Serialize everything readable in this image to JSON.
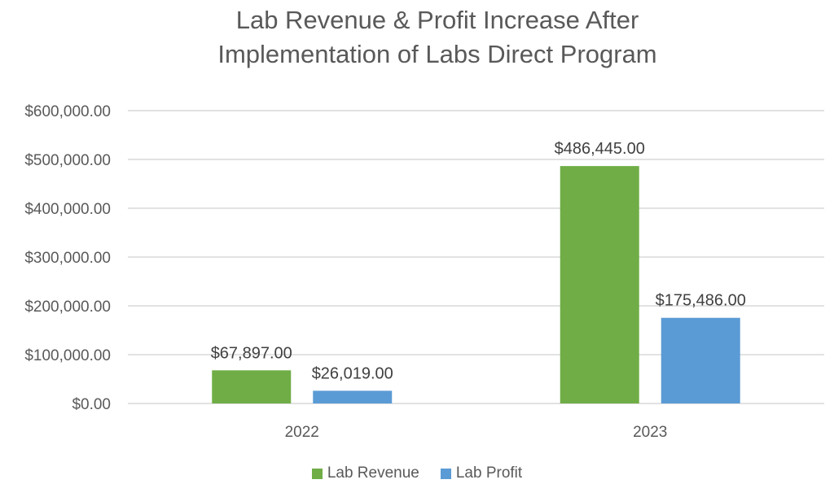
{
  "chart_data": {
    "type": "bar",
    "title": "Lab Revenue & Profit Increase After Implementation of Labs Direct Program",
    "title_lines": [
      "Lab Revenue & Profit Increase After",
      "Implementation of Labs Direct Program"
    ],
    "categories": [
      "2022",
      "2023"
    ],
    "series": [
      {
        "name": "Lab Revenue",
        "color": "#70AD47",
        "values": [
          67897,
          486445
        ],
        "labels": [
          "$67,897.00",
          "$486,445.00"
        ]
      },
      {
        "name": "Lab Profit",
        "color": "#5B9BD5",
        "values": [
          26019,
          175486
        ],
        "labels": [
          "$26,019.00",
          "$175,486.00"
        ]
      }
    ],
    "ylim": [
      0,
      600000
    ],
    "yticks": [
      0,
      100000,
      200000,
      300000,
      400000,
      500000,
      600000
    ],
    "ytick_labels": [
      "$0.00",
      "$100,000.00",
      "$200,000.00",
      "$300,000.00",
      "$400,000.00",
      "$500,000.00",
      "$600,000.00"
    ],
    "xlabel": "",
    "ylabel": "",
    "grid": true,
    "gridline_color": "#D9D9D9",
    "legend_position": "bottom"
  }
}
